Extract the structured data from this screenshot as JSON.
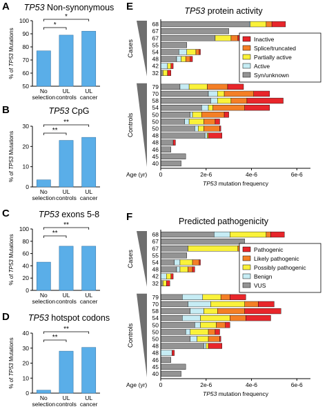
{
  "figure": {
    "panels": [
      {
        "letter": "A",
        "title_gene": "TP53",
        "title_rest": " Non-synonymous",
        "ylabel_gene": "TP53",
        "ylabel_pre": "% of ",
        "ylabel_post": " Mutations"
      },
      {
        "letter": "B",
        "title_gene": "TP53",
        "title_rest": " CpG",
        "ylabel_gene": "TP53",
        "ylabel_pre": "% of ",
        "ylabel_post": " Mutations"
      },
      {
        "letter": "C",
        "title_gene": "TP53",
        "title_rest": " exons 5-8",
        "ylabel_gene": "TP53",
        "ylabel_pre": "% of ",
        "ylabel_post": " Mutations"
      },
      {
        "letter": "D",
        "title_gene": "TP53",
        "title_rest": " hotspot codons",
        "ylabel_gene": "TP53",
        "ylabel_pre": "% of ",
        "ylabel_post": " Mutations"
      },
      {
        "letter": "E",
        "title_gene": "TP53",
        "title_rest": " protein activity",
        "xlabel_gene": "TP53",
        "xlabel_rest": " mutation frequency",
        "age_label": "Age (yr)",
        "group_cases": "Cases",
        "group_controls": "Controls"
      },
      {
        "letter": "F",
        "title_gene": "",
        "title_rest": "Predicted pathogenicity",
        "xlabel_gene": "TP53",
        "xlabel_rest": " mutation frequency",
        "age_label": "Age (yr)",
        "group_cases": "Cases",
        "group_controls": "Controls"
      }
    ]
  },
  "chart_data": [
    {
      "type": "bar",
      "panel": "A",
      "title": "TP53 Non-synonymous",
      "ylabel": "% of TP53 Mutations",
      "categories": [
        [
          "No",
          "selection"
        ],
        [
          "UL",
          "controls"
        ],
        [
          "UL",
          "cancer"
        ]
      ],
      "values": [
        77,
        89,
        92
      ],
      "ylim": [
        50,
        100
      ],
      "yticks": [
        50,
        60,
        70,
        80,
        90,
        100
      ],
      "significance": [
        {
          "from": 0,
          "to": 1,
          "label": "*"
        },
        {
          "from": 0,
          "to": 2,
          "label": "*"
        }
      ],
      "bar_color": "#5aaee8"
    },
    {
      "type": "bar",
      "panel": "B",
      "title": "TP53 CpG",
      "ylabel": "% of TP53 Mutations",
      "categories": [
        [
          "No",
          "selection"
        ],
        [
          "UL",
          "controls"
        ],
        [
          "UL",
          "cancer"
        ]
      ],
      "values": [
        3.5,
        23,
        24.5
      ],
      "ylim": [
        0,
        30
      ],
      "yticks": [
        0,
        10,
        20,
        30
      ],
      "significance": [
        {
          "from": 0,
          "to": 1,
          "label": "**"
        },
        {
          "from": 0,
          "to": 2,
          "label": "**"
        }
      ],
      "bar_color": "#5aaee8"
    },
    {
      "type": "bar",
      "panel": "C",
      "title": "TP53 exons 5-8",
      "ylabel": "% of TP53 Mutations",
      "categories": [
        [
          "No",
          "selection"
        ],
        [
          "UL",
          "controls"
        ],
        [
          "UL",
          "cancer"
        ]
      ],
      "values": [
        46,
        72,
        72
      ],
      "ylim": [
        0,
        100
      ],
      "yticks": [
        0,
        20,
        40,
        60,
        80,
        100
      ],
      "significance": [
        {
          "from": 0,
          "to": 1,
          "label": "**"
        },
        {
          "from": 0,
          "to": 2,
          "label": "**"
        }
      ],
      "bar_color": "#5aaee8"
    },
    {
      "type": "bar",
      "panel": "D",
      "title": "TP53 hotspot codons",
      "ylabel": "% of TP53 Mutations",
      "categories": [
        [
          "No",
          "selection"
        ],
        [
          "UL",
          "controls"
        ],
        [
          "UL",
          "cancer"
        ]
      ],
      "values": [
        2,
        28,
        30.5
      ],
      "ylim": [
        0,
        40
      ],
      "yticks": [
        0,
        10,
        20,
        30,
        40
      ],
      "significance": [
        {
          "from": 0,
          "to": 1,
          "label": "**"
        },
        {
          "from": 0,
          "to": 2,
          "label": "**"
        }
      ],
      "bar_color": "#5aaee8"
    },
    {
      "type": "bar",
      "orientation": "horizontal",
      "stacked": true,
      "panel": "E",
      "title": "TP53 protein activity",
      "xlabel": "TP53 mutation frequency",
      "xlim": [
        0,
        6.6e-06
      ],
      "xticks": [
        0,
        2e-06,
        4e-06,
        6e-06
      ],
      "xtick_labels": [
        "0",
        "2e-6",
        "4e-6",
        "6e-6"
      ],
      "legend_position": "top-right",
      "series": [
        {
          "name": "Inactive",
          "color": "#e8262b"
        },
        {
          "name": "Splice/truncated",
          "color": "#f47f26"
        },
        {
          "name": "Partially active",
          "color": "#faf23a"
        },
        {
          "name": "Active",
          "color": "#c6ecf4"
        },
        {
          "name": "Syn/unknown",
          "color": "#949494"
        }
      ],
      "groups": [
        {
          "name": "Cases",
          "rows": [
            {
              "age": 68,
              "segments": [
                6e-07,
                2.5e-07,
                7e-07,
                5e-08,
                3.9e-06
              ]
            },
            {
              "age": 67,
              "segments": [
                0,
                0,
                0,
                0,
                3e-06
              ]
            },
            {
              "age": 67,
              "segments": [
                2e-07,
                3e-07,
                7e-07,
                0,
                2.4e-06
              ]
            },
            {
              "age": 55,
              "segments": [
                0,
                0,
                0,
                0,
                1.15e-06
              ]
            },
            {
              "age": 54,
              "segments": [
                5e-08,
                1.5e-07,
                4e-07,
                3.5e-07,
                8e-07
              ]
            },
            {
              "age": 48,
              "segments": [
                1e-07,
                2e-07,
                2e-07,
                2e-07,
                7e-07
              ]
            },
            {
              "age": 42,
              "segments": [
                1e-07,
                0,
                1.5e-07,
                3e-07,
                0
              ]
            },
            {
              "age": 32,
              "segments": [
                1.5e-07,
                0,
                2e-07,
                0,
                1e-07
              ]
            }
          ]
        },
        {
          "name": "Controls",
          "rows": [
            {
              "age": 79,
              "segments": [
                7e-07,
                9e-07,
                8e-07,
                4e-07,
                8.5e-07
              ]
            },
            {
              "age": 70,
              "segments": [
                7e-07,
                1.3e-06,
                3e-07,
                4e-07,
                2.1e-06
              ]
            },
            {
              "age": 58,
              "segments": [
                1.6e-06,
                7e-07,
                6e-07,
                3e-07,
                2.2e-06
              ]
            },
            {
              "age": 54,
              "segments": [
                1.1e-06,
                1.4e-06,
                2e-07,
                3e-07,
                1.8e-06
              ]
            },
            {
              "age": 50,
              "segments": [
                2e-07,
                1e-06,
                4e-07,
                1e-07,
                1.3e-06
              ]
            },
            {
              "age": 50,
              "segments": [
                2e-07,
                5e-07,
                6.5e-07,
                2e-07,
                1.05e-06
              ]
            },
            {
              "age": 50,
              "segments": [
                5e-08,
                7e-07,
                2.5e-07,
                1.5e-07,
                1.5e-06
              ]
            },
            {
              "age": 48,
              "segments": [
                6e-07,
                0,
                5e-08,
                1e-07,
                1.95e-06
              ]
            },
            {
              "age": 48,
              "segments": [
                1e-07,
                0,
                0,
                0,
                5.5e-07
              ]
            },
            {
              "age": 46,
              "segments": [
                0,
                0,
                0,
                0,
                4.5e-07
              ]
            },
            {
              "age": 45,
              "segments": [
                0,
                0,
                0,
                0,
                1.1e-06
              ]
            },
            {
              "age": 40,
              "segments": [
                0,
                0,
                0,
                0,
                9e-07
              ]
            }
          ]
        }
      ]
    },
    {
      "type": "bar",
      "orientation": "horizontal",
      "stacked": true,
      "panel": "F",
      "title": "Predicted pathogenicity",
      "xlabel": "TP53 mutation frequency",
      "xlim": [
        0,
        6.6e-06
      ],
      "xticks": [
        0,
        2e-06,
        4e-06,
        6e-06
      ],
      "xtick_labels": [
        "0",
        "2e-6",
        "4e-6",
        "6e-6"
      ],
      "legend_position": "top-right",
      "series": [
        {
          "name": "Pathogenic",
          "color": "#e8262b"
        },
        {
          "name": "Likely pathogenic",
          "color": "#f47f26"
        },
        {
          "name": "Possibly pathogenic",
          "color": "#faf23a"
        },
        {
          "name": "Benign",
          "color": "#c6ecf4"
        },
        {
          "name": "VUS",
          "color": "#949494"
        }
      ],
      "groups": [
        {
          "name": "Cases",
          "rows": [
            {
              "age": 68,
              "segments": [
                6e-07,
                2e-07,
                1.6e-06,
                7e-07,
                2.35e-06
              ]
            },
            {
              "age": 67,
              "segments": [
                0,
                0,
                0,
                0,
                3.7e-06
              ]
            },
            {
              "age": 67,
              "segments": [
                3e-07,
                4e-07,
                2.2e-06,
                0,
                1.2e-06
              ]
            },
            {
              "age": 55,
              "segments": [
                0,
                0,
                0,
                0,
                1.15e-06
              ]
            },
            {
              "age": 54,
              "segments": [
                5e-08,
                3e-07,
                5.5e-07,
                2.5e-07,
                6e-07
              ]
            },
            {
              "age": 48,
              "segments": [
                1e-07,
                2e-07,
                3.5e-07,
                1.5e-07,
                7e-07
              ]
            },
            {
              "age": 42,
              "segments": [
                1e-07,
                0,
                2e-07,
                2.5e-07,
                0
              ]
            },
            {
              "age": 32,
              "segments": [
                1.5e-07,
                0,
                1.5e-07,
                0,
                1e-07
              ]
            }
          ]
        },
        {
          "name": "Controls",
          "rows": [
            {
              "age": 79,
              "segments": [
                7e-07,
                4e-07,
                8e-07,
                9e-07,
                9.5e-07
              ]
            },
            {
              "age": 70,
              "segments": [
                7e-07,
                6e-07,
                1.5e-06,
                1e-06,
                1.2e-06
              ]
            },
            {
              "age": 58,
              "segments": [
                1.6e-06,
                1.2e-06,
                6e-07,
                6e-07,
                1.3e-06
              ]
            },
            {
              "age": 54,
              "segments": [
                1.1e-06,
                7e-07,
                1.3e-06,
                8e-07,
                9.5e-07
              ]
            },
            {
              "age": 50,
              "segments": [
                2e-07,
                4e-07,
                7e-07,
                2.5e-07,
                1.5e-06
              ]
            },
            {
              "age": 50,
              "segments": [
                2e-07,
                3e-07,
                8e-07,
                2e-07,
                1.1e-06
              ]
            },
            {
              "age": 50,
              "segments": [
                5e-08,
                5e-07,
                5e-07,
                3e-07,
                1.3e-06
              ]
            },
            {
              "age": 48,
              "segments": [
                6e-07,
                0,
                1e-07,
                1e-07,
                1.9e-06
              ]
            },
            {
              "age": 48,
              "segments": [
                1e-07,
                0,
                0,
                5e-07,
                0
              ]
            },
            {
              "age": 46,
              "segments": [
                0,
                0,
                0,
                0,
                4.5e-07
              ]
            },
            {
              "age": 45,
              "segments": [
                0,
                0,
                0,
                0,
                1.1e-06
              ]
            },
            {
              "age": 40,
              "segments": [
                0,
                0,
                0,
                0,
                9e-07
              ]
            }
          ]
        }
      ]
    }
  ]
}
